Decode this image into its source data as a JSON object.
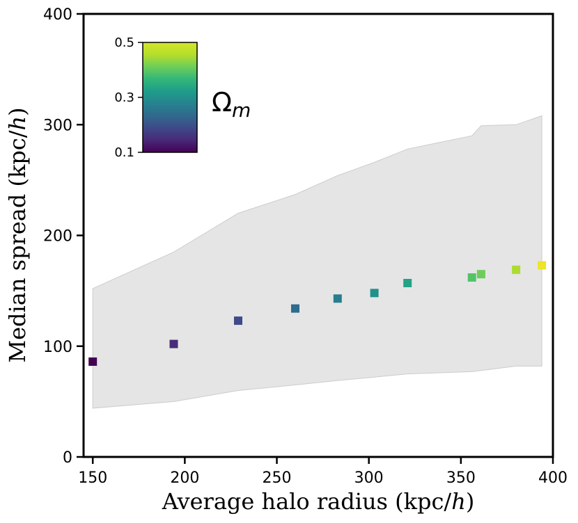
{
  "chart_data": {
    "type": "scatter",
    "xlabel": "Average halo radius (kpc/h)",
    "xlabel_parts": {
      "main": "Average halo radius (kpc/",
      "italic": "h",
      "close": ")"
    },
    "ylabel": "Median spread (kpc/h)",
    "ylabel_parts": {
      "main": "Median spread (kpc/",
      "italic": "h",
      "close": ")"
    },
    "xlim": [
      145,
      400
    ],
    "ylim": [
      0,
      400
    ],
    "xticks": [
      150,
      200,
      250,
      300,
      350,
      400
    ],
    "yticks": [
      0,
      100,
      200,
      300,
      400
    ],
    "grid": false,
    "points": [
      {
        "x": 150,
        "y": 86,
        "omega_m": 0.1
      },
      {
        "x": 194,
        "y": 102,
        "omega_m": 0.15
      },
      {
        "x": 229,
        "y": 123,
        "omega_m": 0.19
      },
      {
        "x": 260,
        "y": 134,
        "omega_m": 0.24
      },
      {
        "x": 283,
        "y": 143,
        "omega_m": 0.27
      },
      {
        "x": 303,
        "y": 148,
        "omega_m": 0.3
      },
      {
        "x": 321,
        "y": 157,
        "omega_m": 0.33
      },
      {
        "x": 356,
        "y": 162,
        "omega_m": 0.39
      },
      {
        "x": 361,
        "y": 165,
        "omega_m": 0.41
      },
      {
        "x": 380,
        "y": 169,
        "omega_m": 0.45
      },
      {
        "x": 394,
        "y": 173,
        "omega_m": 0.49
      }
    ],
    "band": {
      "description": "spread range",
      "color": "#e5e5e5",
      "upper": [
        [
          150,
          152
        ],
        [
          194,
          185
        ],
        [
          229,
          220
        ],
        [
          260,
          237
        ],
        [
          283,
          254
        ],
        [
          303,
          266
        ],
        [
          321,
          278
        ],
        [
          356,
          290
        ],
        [
          361,
          299
        ],
        [
          380,
          300
        ],
        [
          394,
          308
        ]
      ],
      "lower": [
        [
          150,
          44
        ],
        [
          194,
          50
        ],
        [
          229,
          60
        ],
        [
          260,
          65
        ],
        [
          283,
          69
        ],
        [
          303,
          72
        ],
        [
          321,
          75
        ],
        [
          356,
          77
        ],
        [
          361,
          78
        ],
        [
          380,
          82
        ],
        [
          394,
          82
        ]
      ]
    },
    "colorbar": {
      "label_base": "Ω",
      "label_sub": "m",
      "range": [
        0.1,
        0.5
      ],
      "ticks": [
        "0.1",
        "0.3",
        "0.5"
      ],
      "placement": "top-left inset",
      "colormap": [
        "#440154",
        "#482878",
        "#3e4989",
        "#31688e",
        "#26828e",
        "#1f9e89",
        "#35b779",
        "#6ece58",
        "#b5de2b",
        "#fde725"
      ]
    }
  }
}
